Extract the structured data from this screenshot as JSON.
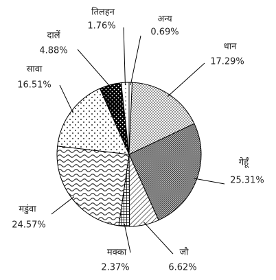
{
  "chart_data": {
    "type": "pie",
    "categories": [
      "अन्य",
      "धान",
      "गेहूँ",
      "जौ",
      "मक्का",
      "मडुंवा",
      "सावा",
      "दालें",
      "तिलहन"
    ],
    "values": [
      0.69,
      17.29,
      25.31,
      6.62,
      2.37,
      24.57,
      16.51,
      4.88,
      1.76
    ],
    "value_labels": [
      "0.69%",
      "17.29%",
      "25.31%",
      "6.62%",
      "2.37%",
      "24.57%",
      "16.51%",
      "4.88%",
      "1.76%"
    ]
  }
}
